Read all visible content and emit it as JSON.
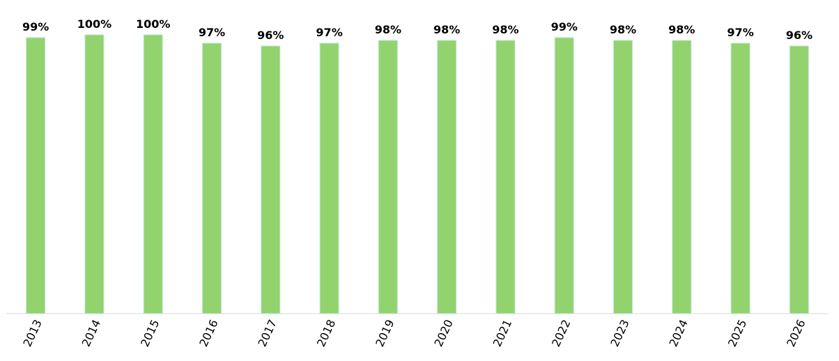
{
  "chart_data": {
    "type": "bar",
    "categories": [
      "2013",
      "2014",
      "2015",
      "2016",
      "2017",
      "2018",
      "2019",
      "2020",
      "2021",
      "2022",
      "2023",
      "2024",
      "2025",
      "2026"
    ],
    "values": [
      99,
      100,
      100,
      97,
      96,
      97,
      98,
      98,
      98,
      99,
      98,
      98,
      97,
      96
    ],
    "value_labels": [
      "99%",
      "100%",
      "100%",
      "97%",
      "96%",
      "97%",
      "98%",
      "98%",
      "98%",
      "99%",
      "98%",
      "98%",
      "97%",
      "96%"
    ],
    "color": "#92d36e",
    "ylim": [
      0,
      100
    ]
  }
}
